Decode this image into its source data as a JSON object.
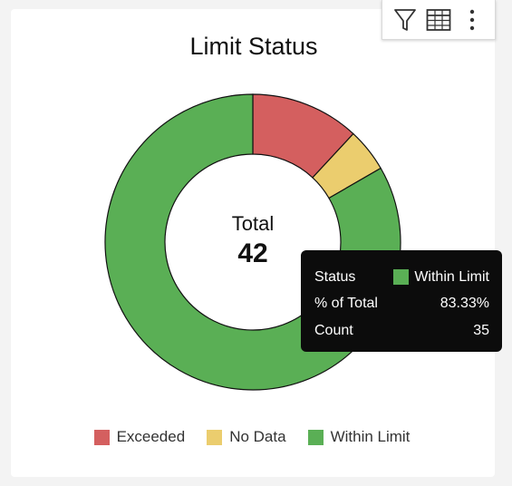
{
  "toolbar": {
    "filter_icon": "filter-icon",
    "table_icon": "table-icon",
    "more_icon": "more-vertical-icon"
  },
  "center": {
    "label": "Total",
    "value": "42"
  },
  "tooltip": {
    "rows": [
      {
        "label": "Status",
        "value": "Within Limit",
        "swatch": "#5aaf55"
      },
      {
        "label": "% of Total",
        "value": "83.33%"
      },
      {
        "label": "Count",
        "value": "35"
      }
    ]
  },
  "chart_data": {
    "type": "pie",
    "variant": "donut",
    "title": "Limit Status",
    "categories": [
      "Exceeded",
      "No Data",
      "Within Limit"
    ],
    "values": [
      5,
      2,
      35
    ],
    "colors": [
      "#d45f5f",
      "#ebcd6e",
      "#5aaf55"
    ],
    "legend_position": "bottom"
  }
}
